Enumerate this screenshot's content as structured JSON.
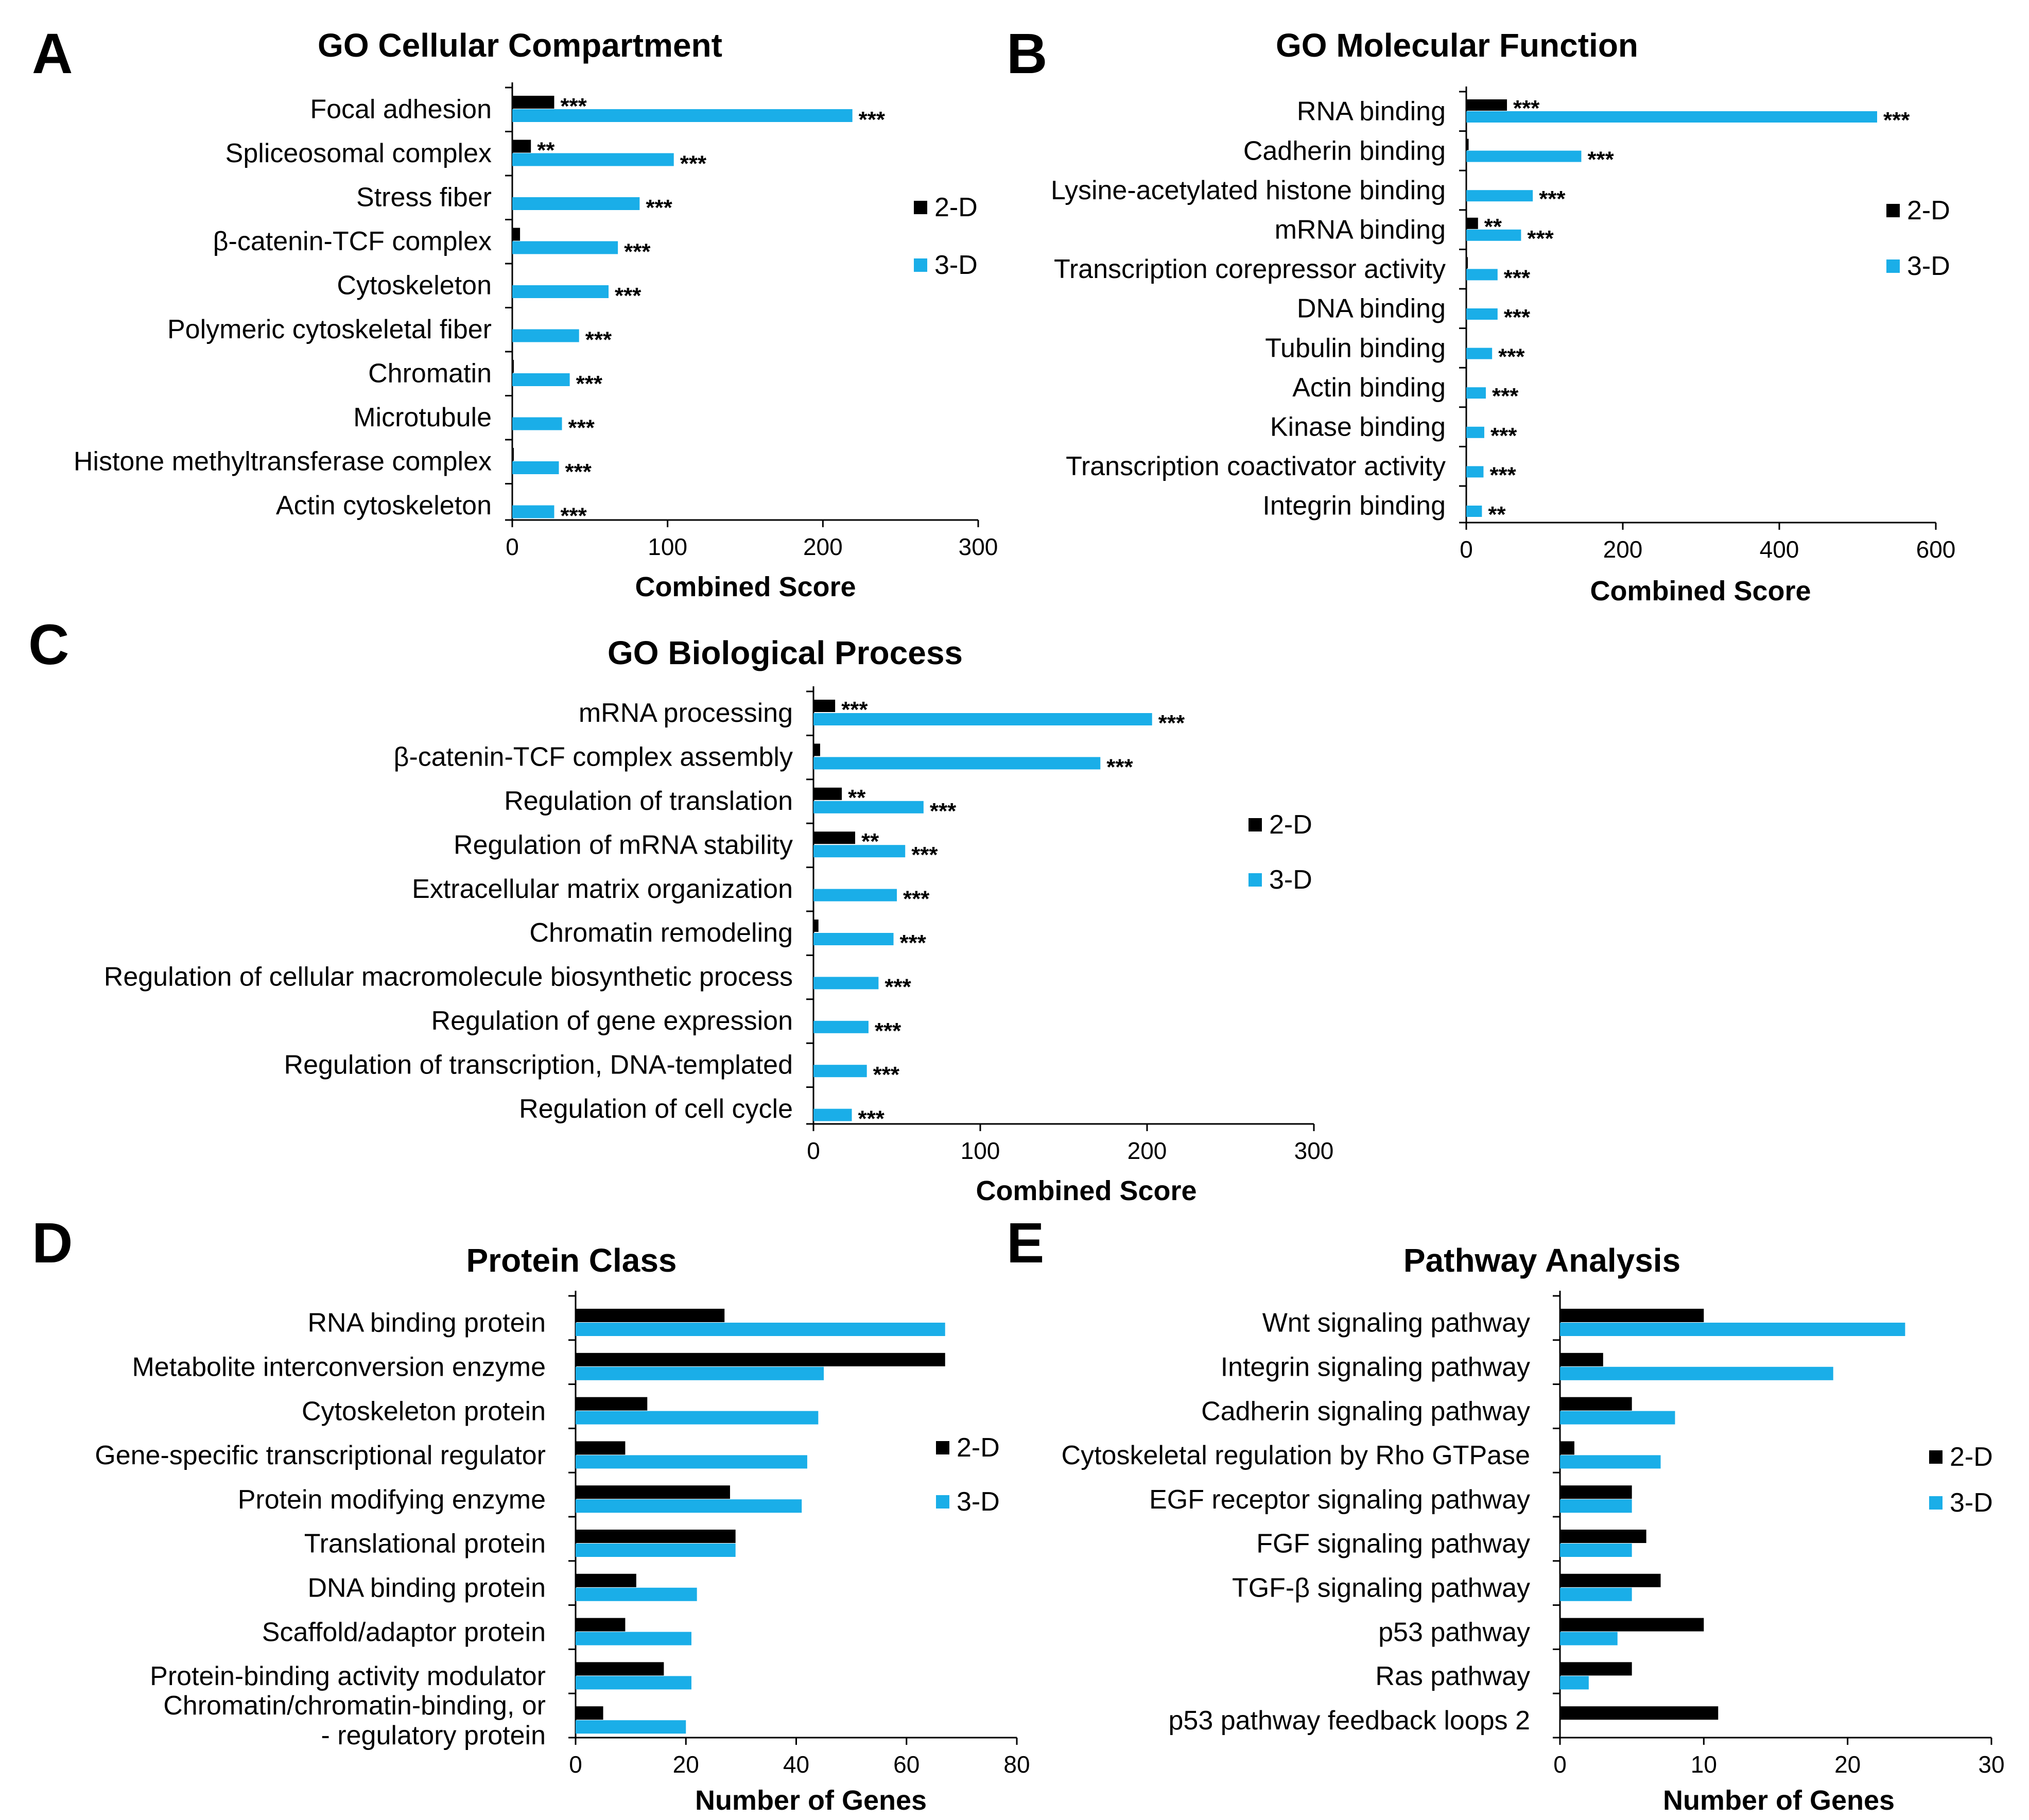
{
  "colors": {
    "series_2d": "#000000",
    "series_3d": "#1aaee8",
    "axis": "#000000",
    "text": "#000000"
  },
  "chart_data": [
    {
      "panel_letter": "A",
      "type": "bar",
      "orientation": "horizontal",
      "title": "GO Cellular Compartment",
      "xlabel": "Combined Score",
      "xlim": [
        0,
        300
      ],
      "xticks": [
        "0",
        "100",
        "200",
        "300"
      ],
      "legend_placement": "right",
      "categories": [
        "Focal adhesion",
        "Spliceosomal complex",
        "Stress fiber",
        "β-catenin-TCF complex",
        "Cytoskeleton",
        "Polymeric cytoskeletal fiber",
        "Chromatin",
        "Microtubule",
        "Histone methyltransferase complex",
        "Actin cytoskeleton"
      ],
      "series": [
        {
          "name": "2-D",
          "values": [
            27,
            12,
            0,
            5,
            0,
            0,
            1,
            0,
            1,
            0
          ],
          "significance": [
            "***",
            "**",
            "",
            "",
            "",
            "",
            "",
            "",
            "",
            ""
          ]
        },
        {
          "name": "3-D",
          "values": [
            219,
            104,
            82,
            68,
            62,
            43,
            37,
            32,
            30,
            27
          ],
          "significance": [
            "***",
            "***",
            "***",
            "***",
            "***",
            "***",
            "***",
            "***",
            "***",
            "***"
          ]
        }
      ]
    },
    {
      "panel_letter": "B",
      "type": "bar",
      "orientation": "horizontal",
      "title": "GO Molecular Function",
      "xlabel": "Combined Score",
      "xlim": [
        0,
        600
      ],
      "xticks": [
        "0",
        "200",
        "400",
        "600"
      ],
      "legend_placement": "right",
      "categories": [
        "RNA binding",
        "Cadherin binding",
        "Lysine-acetylated histone binding",
        "mRNA binding",
        "Transcription corepressor activity",
        "DNA binding",
        "Tubulin binding",
        "Actin binding",
        "Kinase binding",
        "Transcription coactivator activity",
        "Integrin binding"
      ],
      "series": [
        {
          "name": "2-D",
          "values": [
            52,
            3,
            0,
            15,
            2,
            0,
            0,
            0,
            0,
            0,
            0
          ],
          "significance": [
            "***",
            "",
            "",
            "**",
            "",
            "",
            "",
            "",
            "",
            "",
            ""
          ]
        },
        {
          "name": "3-D",
          "values": [
            525,
            147,
            85,
            70,
            40,
            40,
            33,
            25,
            23,
            22,
            20
          ],
          "significance": [
            "***",
            "***",
            "***",
            "***",
            "***",
            "***",
            "***",
            "***",
            "***",
            "***",
            "**"
          ]
        }
      ]
    },
    {
      "panel_letter": "C",
      "type": "bar",
      "orientation": "horizontal",
      "title": "GO Biological Process",
      "xlabel": "Combined Score",
      "xlim": [
        0,
        300
      ],
      "xticks": [
        "0",
        "100",
        "200",
        "300"
      ],
      "legend_placement": "right",
      "categories": [
        "mRNA processing",
        "β-catenin-TCF complex assembly",
        "Regulation of translation",
        "Regulation of mRNA stability",
        "Extracellular matrix organization",
        "Chromatin remodeling",
        "Regulation of cellular macromolecule biosynthetic process",
        "Regulation of gene expression",
        "Regulation of transcription, DNA-templated",
        "Regulation of cell cycle"
      ],
      "series": [
        {
          "name": "2-D",
          "values": [
            13,
            4,
            17,
            25,
            0,
            3,
            0,
            0,
            0,
            0
          ],
          "significance": [
            "***",
            "",
            "**",
            "**",
            "",
            "",
            "",
            "",
            "",
            ""
          ]
        },
        {
          "name": "3-D",
          "values": [
            203,
            172,
            66,
            55,
            50,
            48,
            39,
            33,
            32,
            23
          ],
          "significance": [
            "***",
            "***",
            "***",
            "***",
            "***",
            "***",
            "***",
            "***",
            "***",
            "***"
          ]
        }
      ]
    },
    {
      "panel_letter": "D",
      "type": "bar",
      "orientation": "horizontal",
      "title": "Protein Class",
      "xlabel": "Number of Genes",
      "xlim": [
        0,
        80
      ],
      "xticks": [
        "0",
        "20",
        "40",
        "60",
        "80"
      ],
      "legend_placement": "right",
      "categories": [
        "RNA binding protein",
        "Metabolite interconversion enzyme",
        "Cytoskeleton protein",
        "Gene-specific transcriptional regulator",
        "Protein modifying enzyme",
        "Translational protein",
        "DNA binding protein",
        "Scaffold/adaptor protein",
        "Protein-binding activity modulator",
        "Chromatin/chromatin-binding, or\n- regulatory protein"
      ],
      "series": [
        {
          "name": "2-D",
          "values": [
            27,
            67,
            13,
            9,
            28,
            29,
            11,
            9,
            16,
            5
          ]
        },
        {
          "name": "3-D",
          "values": [
            67,
            45,
            44,
            42,
            41,
            29,
            22,
            21,
            21,
            20
          ]
        }
      ]
    },
    {
      "panel_letter": "E",
      "type": "bar",
      "orientation": "horizontal",
      "title": "Pathway Analysis",
      "xlabel": "Number of Genes",
      "xlim": [
        0,
        30
      ],
      "xticks": [
        "0",
        "10",
        "20",
        "30"
      ],
      "legend_placement": "right",
      "categories": [
        "Wnt signaling pathway",
        "Integrin signaling pathway",
        "Cadherin signaling pathway",
        "Cytoskeletal regulation by Rho GTPase",
        "EGF receptor signaling pathway",
        "FGF signaling pathway",
        "TGF-β signaling pathway",
        "p53 pathway",
        "Ras pathway",
        "p53 pathway feedback loops 2"
      ],
      "series": [
        {
          "name": "2-D",
          "values": [
            10,
            3,
            5,
            1,
            5,
            6,
            7,
            10,
            5,
            11
          ]
        },
        {
          "name": "3-D",
          "values": [
            24,
            19,
            8,
            7,
            5,
            5,
            5,
            4,
            2,
            0
          ]
        }
      ]
    }
  ]
}
